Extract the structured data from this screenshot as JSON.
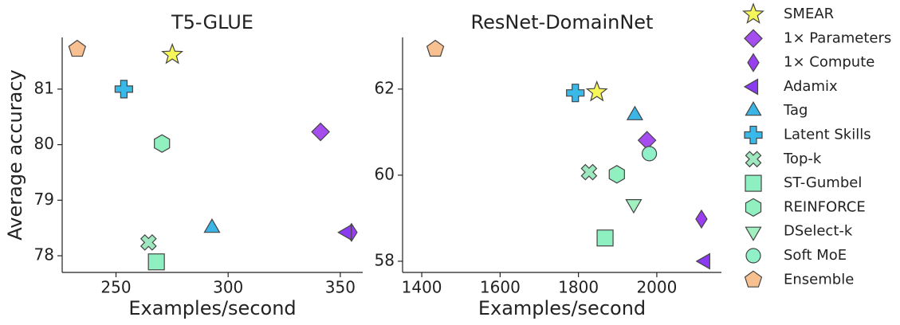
{
  "legend": [
    {
      "name": "SMEAR",
      "color": "#f7f75a",
      "marker": "star"
    },
    {
      "name": "1× Parameters",
      "color": "#a64df0",
      "marker": "diamond"
    },
    {
      "name": "1× Compute",
      "color": "#9a3ff0",
      "marker": "thin_diamond"
    },
    {
      "name": "Adamix",
      "color": "#8a3af0",
      "marker": "triangle_left"
    },
    {
      "name": "Tag",
      "color": "#3ab5e6",
      "marker": "triangle_up"
    },
    {
      "name": "Latent Skills",
      "color": "#3ab8e8",
      "marker": "plus"
    },
    {
      "name": "Top-k",
      "color": "#9ee8c0",
      "marker": "x"
    },
    {
      "name": "ST-Gumbel",
      "color": "#8ef0c0",
      "marker": "square"
    },
    {
      "name": "REINFORCE",
      "color": "#90f0c0",
      "marker": "hexagon"
    },
    {
      "name": "DSelect-k",
      "color": "#a0f0c0",
      "marker": "triangle_down"
    },
    {
      "name": "Soft MoE",
      "color": "#90f0c8",
      "marker": "circle"
    },
    {
      "name": "Ensemble",
      "color": "#f8c090",
      "marker": "pentagon"
    }
  ],
  "chart_data": [
    {
      "type": "scatter",
      "title": "T5-GLUE",
      "xlabel": "Examples/second",
      "ylabel": "Average accuracy",
      "x": [
        275.1,
        341.2,
        355,
        353,
        292.8,
        253.5,
        264.5,
        268,
        270.5,
        null,
        null,
        232.7
      ],
      "values": [
        81.62,
        80.23,
        78.42,
        78.42,
        78.5,
        81.0,
        78.24,
        77.89,
        80.02,
        null,
        null,
        81.72
      ],
      "xlim": [
        226,
        360
      ],
      "ylim": [
        77.7,
        81.93
      ],
      "xticks": [
        250,
        300,
        350
      ],
      "yticks": [
        78,
        79,
        80,
        81
      ]
    },
    {
      "type": "scatter",
      "title": "ResNet-DomainNet",
      "xlabel": "Examples/second",
      "x": [
        1847,
        1975,
        2114,
        2124,
        1944,
        1792,
        1827,
        1868,
        1898,
        1941,
        1981,
        1434.6
      ],
      "values": [
        61.93,
        60.81,
        58.98,
        58.0,
        61.39,
        61.91,
        60.07,
        58.54,
        60.02,
        59.33,
        60.5,
        62.93
      ],
      "xlim": [
        1351,
        2165
      ],
      "ylim": [
        57.74,
        63.2
      ],
      "xticks": [
        1400,
        1600,
        1800,
        2000
      ],
      "yticks": [
        58,
        60,
        62
      ]
    }
  ]
}
